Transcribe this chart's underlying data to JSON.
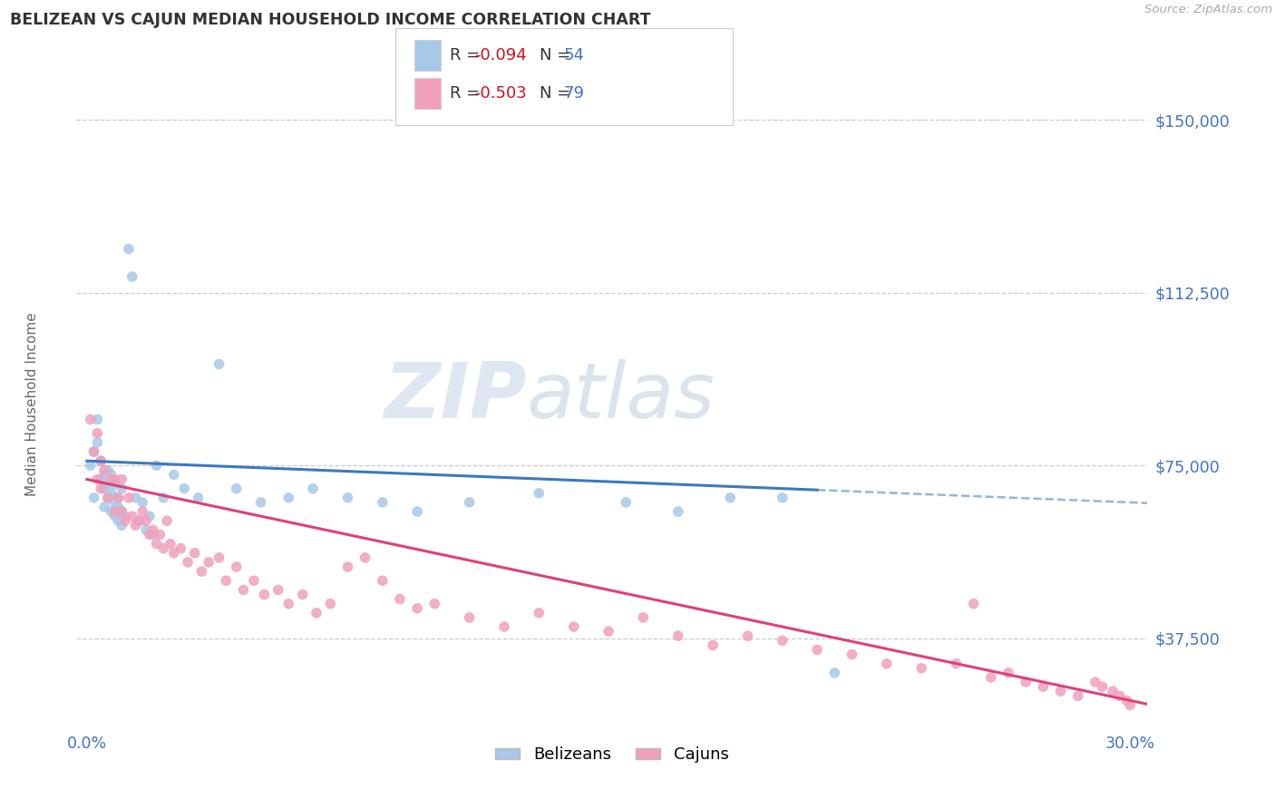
{
  "title": "BELIZEAN VS CAJUN MEDIAN HOUSEHOLD INCOME CORRELATION CHART",
  "source": "Source: ZipAtlas.com",
  "ylabel": "Median Household Income",
  "xlim": [
    -0.003,
    0.305
  ],
  "ylim": [
    18000,
    162000
  ],
  "yticks": [
    37500,
    75000,
    112500,
    150000
  ],
  "ytick_labels": [
    "$37,500",
    "$75,000",
    "$112,500",
    "$150,000"
  ],
  "xtick_labels": [
    "0.0%",
    "30.0%"
  ],
  "xtick_vals": [
    0.0,
    0.3
  ],
  "belizean_color": "#a8c8e8",
  "cajun_color": "#f0a0bc",
  "trendline_belizean_color": "#3a7abf",
  "trendline_cajun_color": "#e0407a",
  "belizean_R": -0.094,
  "belizean_N": 54,
  "cajun_R": -0.503,
  "cajun_N": 79,
  "watermark_color": "#d0dce8",
  "belizean_x": [
    0.001,
    0.002,
    0.002,
    0.003,
    0.003,
    0.004,
    0.004,
    0.005,
    0.005,
    0.005,
    0.006,
    0.006,
    0.006,
    0.007,
    0.007,
    0.007,
    0.008,
    0.008,
    0.008,
    0.009,
    0.009,
    0.009,
    0.01,
    0.01,
    0.01,
    0.011,
    0.012,
    0.013,
    0.014,
    0.015,
    0.016,
    0.017,
    0.018,
    0.019,
    0.02,
    0.022,
    0.025,
    0.028,
    0.032,
    0.038,
    0.043,
    0.05,
    0.058,
    0.065,
    0.075,
    0.085,
    0.095,
    0.11,
    0.13,
    0.155,
    0.17,
    0.185,
    0.2,
    0.215
  ],
  "belizean_y": [
    75000,
    78000,
    68000,
    80000,
    85000,
    72000,
    76000,
    70000,
    73000,
    66000,
    74000,
    68000,
    71000,
    69000,
    65000,
    73000,
    67000,
    71000,
    64000,
    68000,
    63000,
    66000,
    70000,
    65000,
    62000,
    64000,
    122000,
    116000,
    68000,
    63000,
    67000,
    61000,
    64000,
    60000,
    75000,
    68000,
    73000,
    70000,
    68000,
    97000,
    70000,
    67000,
    68000,
    70000,
    68000,
    67000,
    65000,
    67000,
    69000,
    67000,
    65000,
    68000,
    68000,
    30000
  ],
  "cajun_x": [
    0.001,
    0.002,
    0.003,
    0.003,
    0.004,
    0.004,
    0.005,
    0.006,
    0.007,
    0.008,
    0.008,
    0.009,
    0.01,
    0.01,
    0.011,
    0.012,
    0.013,
    0.014,
    0.015,
    0.016,
    0.017,
    0.018,
    0.019,
    0.02,
    0.021,
    0.022,
    0.023,
    0.024,
    0.025,
    0.027,
    0.029,
    0.031,
    0.033,
    0.035,
    0.038,
    0.04,
    0.043,
    0.045,
    0.048,
    0.051,
    0.055,
    0.058,
    0.062,
    0.066,
    0.07,
    0.075,
    0.08,
    0.085,
    0.09,
    0.095,
    0.1,
    0.11,
    0.12,
    0.13,
    0.14,
    0.15,
    0.16,
    0.17,
    0.18,
    0.19,
    0.2,
    0.21,
    0.22,
    0.23,
    0.24,
    0.25,
    0.255,
    0.26,
    0.265,
    0.27,
    0.275,
    0.28,
    0.285,
    0.29,
    0.292,
    0.295,
    0.297,
    0.299,
    0.3
  ],
  "cajun_y": [
    85000,
    78000,
    82000,
    72000,
    76000,
    70000,
    74000,
    68000,
    72000,
    65000,
    72000,
    68000,
    65000,
    72000,
    63000,
    68000,
    64000,
    62000,
    63000,
    65000,
    63000,
    60000,
    61000,
    58000,
    60000,
    57000,
    63000,
    58000,
    56000,
    57000,
    54000,
    56000,
    52000,
    54000,
    55000,
    50000,
    53000,
    48000,
    50000,
    47000,
    48000,
    45000,
    47000,
    43000,
    45000,
    53000,
    55000,
    50000,
    46000,
    44000,
    45000,
    42000,
    40000,
    43000,
    40000,
    39000,
    42000,
    38000,
    36000,
    38000,
    37000,
    35000,
    34000,
    32000,
    31000,
    32000,
    45000,
    29000,
    30000,
    28000,
    27000,
    26000,
    25000,
    28000,
    27000,
    26000,
    25000,
    24000,
    23000
  ]
}
